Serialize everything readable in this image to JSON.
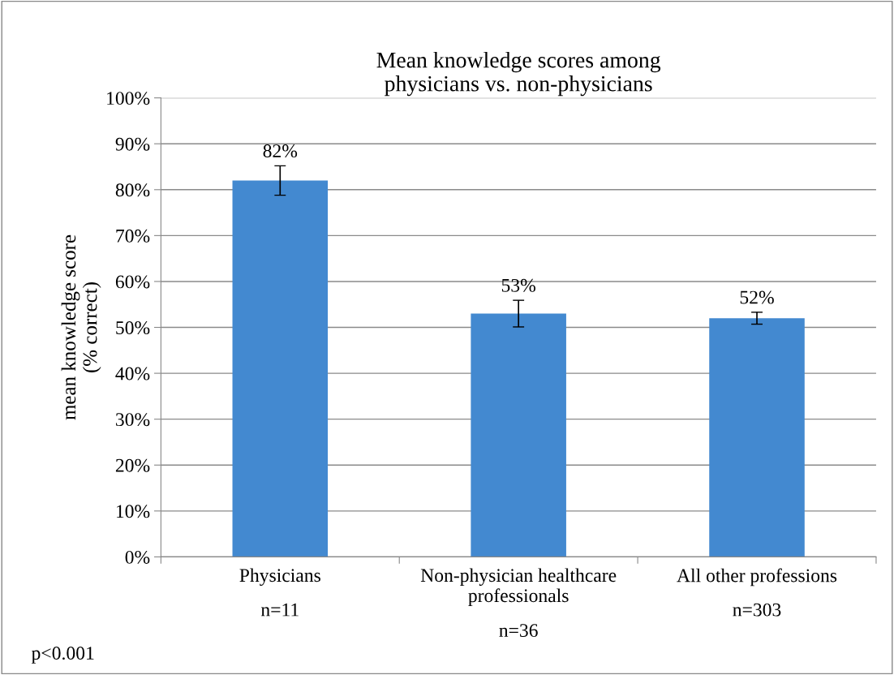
{
  "chart_data": {
    "type": "bar",
    "title": "Mean knowledge scores among\nphysicians vs. non-physicians",
    "ylabel": "mean knowledge score\n(% correct)",
    "categories": [
      "Physicians",
      "Non-physician healthcare\nprofessionals",
      "All other professions"
    ],
    "values": [
      82,
      53,
      52
    ],
    "color": "#4389d0",
    "errors": [
      3.2,
      2.9,
      1.3
    ],
    "value_labels": [
      "82%",
      "53%",
      "52%"
    ],
    "ylim": [
      0,
      100
    ],
    "yticks": [
      {
        "value": 0,
        "label": "0%"
      },
      {
        "value": 10,
        "label": "10%"
      },
      {
        "value": 20,
        "label": "20%"
      },
      {
        "value": 30,
        "label": "30%"
      },
      {
        "value": 40,
        "label": "40%"
      },
      {
        "value": 50,
        "label": "50%"
      },
      {
        "value": 60,
        "label": "60%"
      },
      {
        "value": 70,
        "label": "70%"
      },
      {
        "value": 80,
        "label": "80%"
      },
      {
        "value": 90,
        "label": "90%"
      },
      {
        "value": 100,
        "label": "100%"
      }
    ],
    "grid": "y",
    "annotations": [
      "n=11",
      "n=36",
      "n=303",
      "p<0.001"
    ]
  }
}
